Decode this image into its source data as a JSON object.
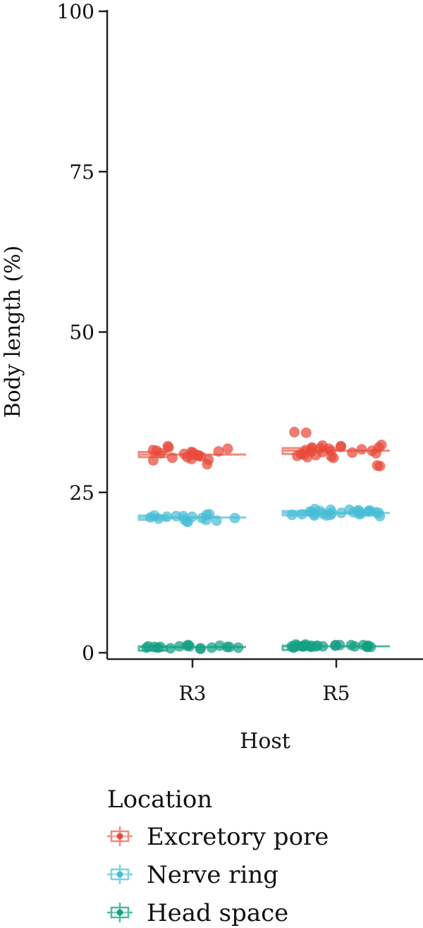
{
  "chart_data": {
    "type": "scatter",
    "xlabel": "Host",
    "ylabel": "Body length (%)",
    "ylim": [
      0,
      100
    ],
    "yticks": [
      0,
      25,
      50,
      75,
      100
    ],
    "categories": [
      "R3",
      "R5"
    ],
    "grid": false,
    "legend": {
      "title": "Location",
      "position": "bottom-left"
    },
    "series": [
      {
        "name": "Excretory pore",
        "color": "#e8493a",
        "box_color": "#f08a7e",
        "median": {
          "R3": 30.9,
          "R5": 31.5
        },
        "q1": {
          "R3": 30.5,
          "R5": 31.0
        },
        "q3": {
          "R3": 31.3,
          "R5": 31.9
        },
        "points": {
          "R3": [
            30.2,
            30.8,
            31.5,
            32.0,
            30.5,
            31.2,
            30.0,
            31.8,
            30.6,
            31.0,
            30.4,
            31.4,
            29.4,
            31.6,
            30.9,
            32.2,
            30.1,
            31.1,
            30.7,
            31.3
          ],
          "R5": [
            34.3,
            34.4,
            29.2,
            29.1,
            31.0,
            31.5,
            32.0,
            30.5,
            31.8,
            32.2,
            31.2,
            30.8,
            31.6,
            32.4,
            30.6,
            31.4,
            32.1,
            31.9,
            30.9,
            31.7,
            32.3,
            31.3,
            30.7,
            31.1,
            32.0,
            31.5,
            30.4,
            31.8
          ]
        }
      },
      {
        "name": "Nerve ring",
        "color": "#48bcd6",
        "box_color": "#7fd0e2",
        "median": {
          "R3": 21.1,
          "R5": 21.8
        },
        "q1": {
          "R3": 20.8,
          "R5": 21.5
        },
        "q3": {
          "R3": 21.4,
          "R5": 22.1
        },
        "points": {
          "R3": [
            21.0,
            21.3,
            20.6,
            21.5,
            20.9,
            21.2,
            20.4,
            21.4,
            21.1,
            20.8,
            21.6,
            20.7,
            21.0,
            21.3,
            20.5,
            21.2
          ],
          "R5": [
            21.5,
            22.0,
            21.8,
            22.3,
            21.4,
            21.9,
            22.1,
            21.6,
            22.4,
            21.7,
            22.2,
            21.3,
            21.9,
            22.0,
            21.6,
            22.3,
            21.8,
            21.5,
            22.1,
            21.7,
            22.0,
            21.4,
            21.9,
            22.2,
            21.6,
            21.8
          ]
        }
      },
      {
        "name": "Head space",
        "color": "#13a084",
        "box_color": "#4dbaa3",
        "median": {
          "R3": 0.9,
          "R5": 1.0
        },
        "q1": {
          "R3": 0.8,
          "R5": 0.9
        },
        "q3": {
          "R3": 1.0,
          "R5": 1.1
        },
        "points": {
          "R3": [
            0.8,
            1.0,
            0.7,
            1.1,
            0.9,
            0.8,
            1.2,
            0.9,
            0.6,
            1.0,
            0.8,
            1.1,
            0.9,
            0.7,
            1.0,
            0.9,
            0.8
          ],
          "R5": [
            1.0,
            1.2,
            0.9,
            1.1,
            1.0,
            1.3,
            0.8,
            1.1,
            1.0,
            1.2,
            0.9,
            1.1,
            1.0,
            1.2,
            0.9,
            1.0,
            1.1,
            1.3,
            1.0,
            0.9,
            1.1,
            1.2,
            1.0,
            1.1
          ]
        }
      }
    ]
  }
}
